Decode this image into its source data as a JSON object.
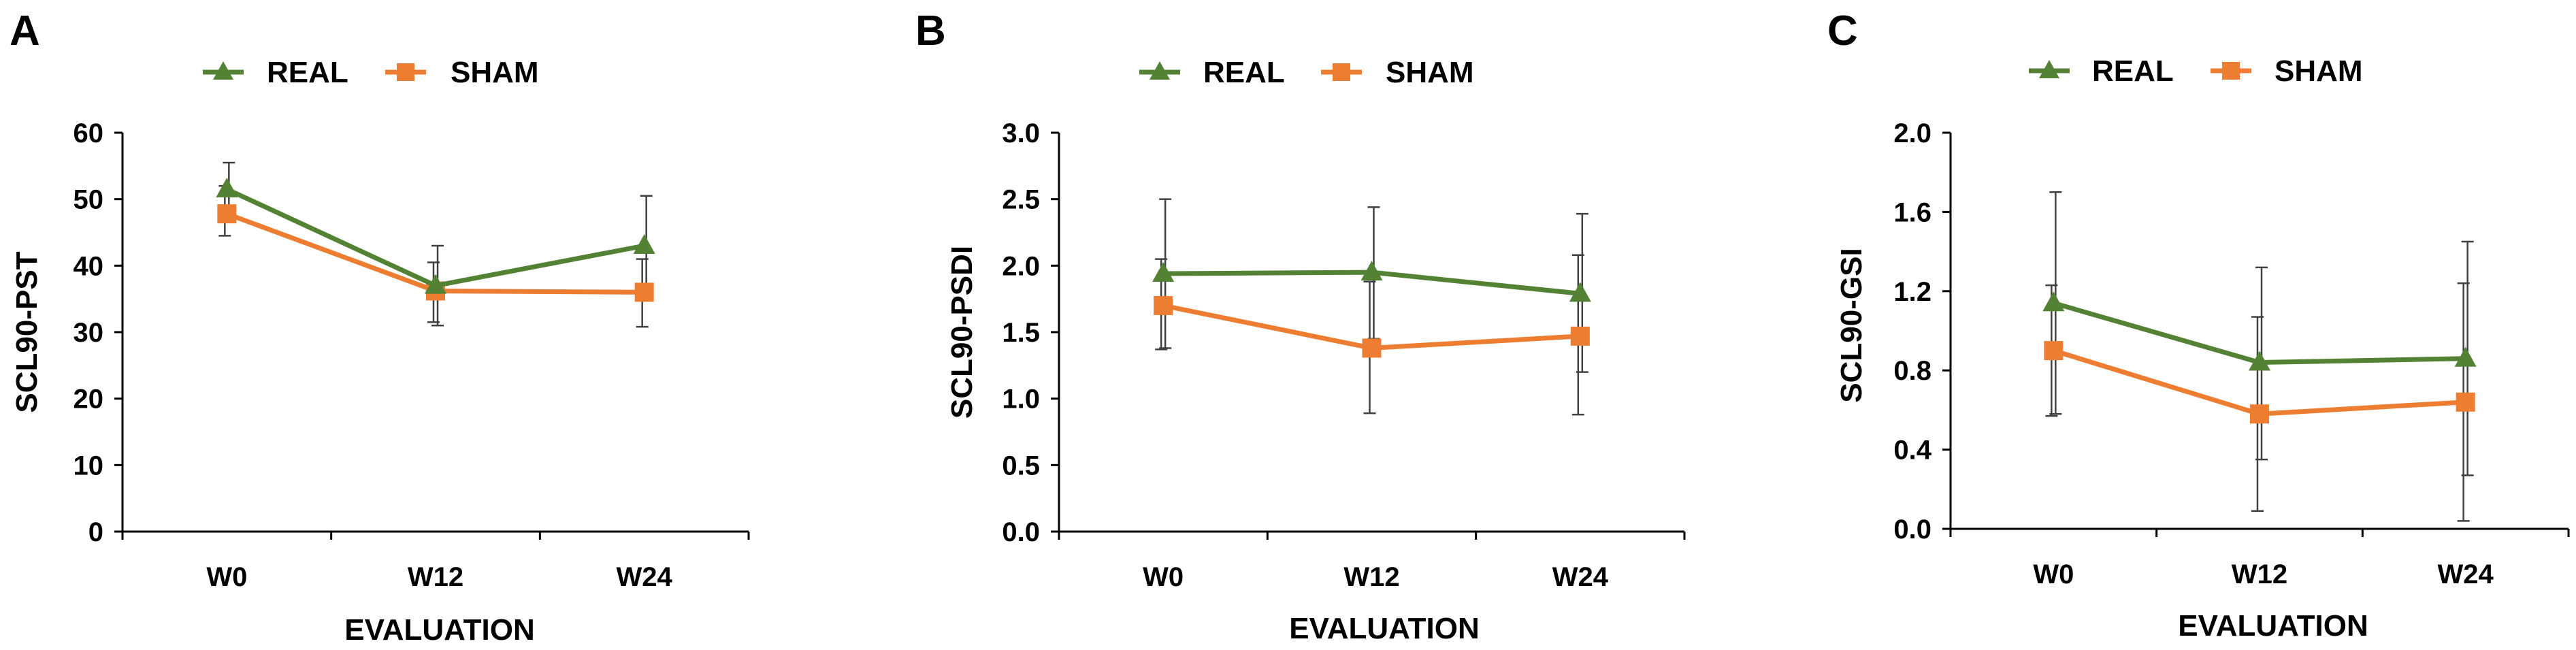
{
  "colors": {
    "real": "#548235",
    "sham": "#ED7D31",
    "axis": "#000000",
    "errorbar": "#404040"
  },
  "chart_data": [
    {
      "panel": "A",
      "type": "line",
      "categories": [
        "W0",
        "W12",
        "W24"
      ],
      "xlabel": "EVALUATION",
      "ylabel": "SCL90-PST",
      "ylim": [
        0,
        60
      ],
      "yticks": [
        0,
        10,
        20,
        30,
        40,
        50,
        60
      ],
      "ytick_labels": [
        "0",
        "10",
        "20",
        "30",
        "40",
        "50",
        "60"
      ],
      "legend_position": "top",
      "series": [
        {
          "name": "REAL",
          "marker": "triangle",
          "values": [
            51.5,
            37,
            43
          ],
          "error_low": [
            48,
            31,
            36
          ],
          "error_high": [
            55.5,
            43,
            50.5
          ]
        },
        {
          "name": "SHAM",
          "marker": "square",
          "values": [
            47.8,
            36.2,
            36
          ],
          "error_low": [
            44.5,
            31.5,
            30.8
          ],
          "error_high": [
            52,
            40.5,
            41
          ]
        }
      ]
    },
    {
      "panel": "B",
      "type": "line",
      "categories": [
        "W0",
        "W12",
        "W24"
      ],
      "xlabel": "EVALUATION",
      "ylabel": "SCL90-PSDI",
      "ylim": [
        0,
        3.0
      ],
      "yticks": [
        0,
        0.5,
        1.0,
        1.5,
        2.0,
        2.5,
        3.0
      ],
      "ytick_labels": [
        "0.0",
        "0.5",
        "1.0",
        "1.5",
        "2.0",
        "2.5",
        "3.0"
      ],
      "legend_position": "top",
      "series": [
        {
          "name": "REAL",
          "marker": "triangle",
          "values": [
            1.94,
            1.95,
            1.79
          ],
          "error_low": [
            1.38,
            1.45,
            1.2
          ],
          "error_high": [
            2.5,
            2.44,
            2.39
          ]
        },
        {
          "name": "SHAM",
          "marker": "square",
          "values": [
            1.7,
            1.38,
            1.47
          ],
          "error_low": [
            1.37,
            0.89,
            0.88
          ],
          "error_high": [
            2.05,
            1.88,
            2.08
          ]
        }
      ]
    },
    {
      "panel": "C",
      "type": "line",
      "categories": [
        "W0",
        "W12",
        "W24"
      ],
      "xlabel": "EVALUATION",
      "ylabel": "SCL90-GSI",
      "ylim": [
        0,
        2.0
      ],
      "yticks": [
        0,
        0.4,
        0.8,
        1.2,
        1.6,
        2.0
      ],
      "ytick_labels": [
        "0.0",
        "0.4",
        "0.8",
        "1.2",
        "1.6",
        "2.0"
      ],
      "legend_position": "top",
      "series": [
        {
          "name": "REAL",
          "marker": "triangle",
          "values": [
            1.14,
            0.84,
            0.86
          ],
          "error_low": [
            0.58,
            0.35,
            0.27
          ],
          "error_high": [
            1.7,
            1.32,
            1.45
          ]
        },
        {
          "name": "SHAM",
          "marker": "square",
          "values": [
            0.9,
            0.58,
            0.64
          ],
          "error_low": [
            0.57,
            0.09,
            0.04
          ],
          "error_high": [
            1.23,
            1.07,
            1.24
          ]
        }
      ]
    }
  ]
}
